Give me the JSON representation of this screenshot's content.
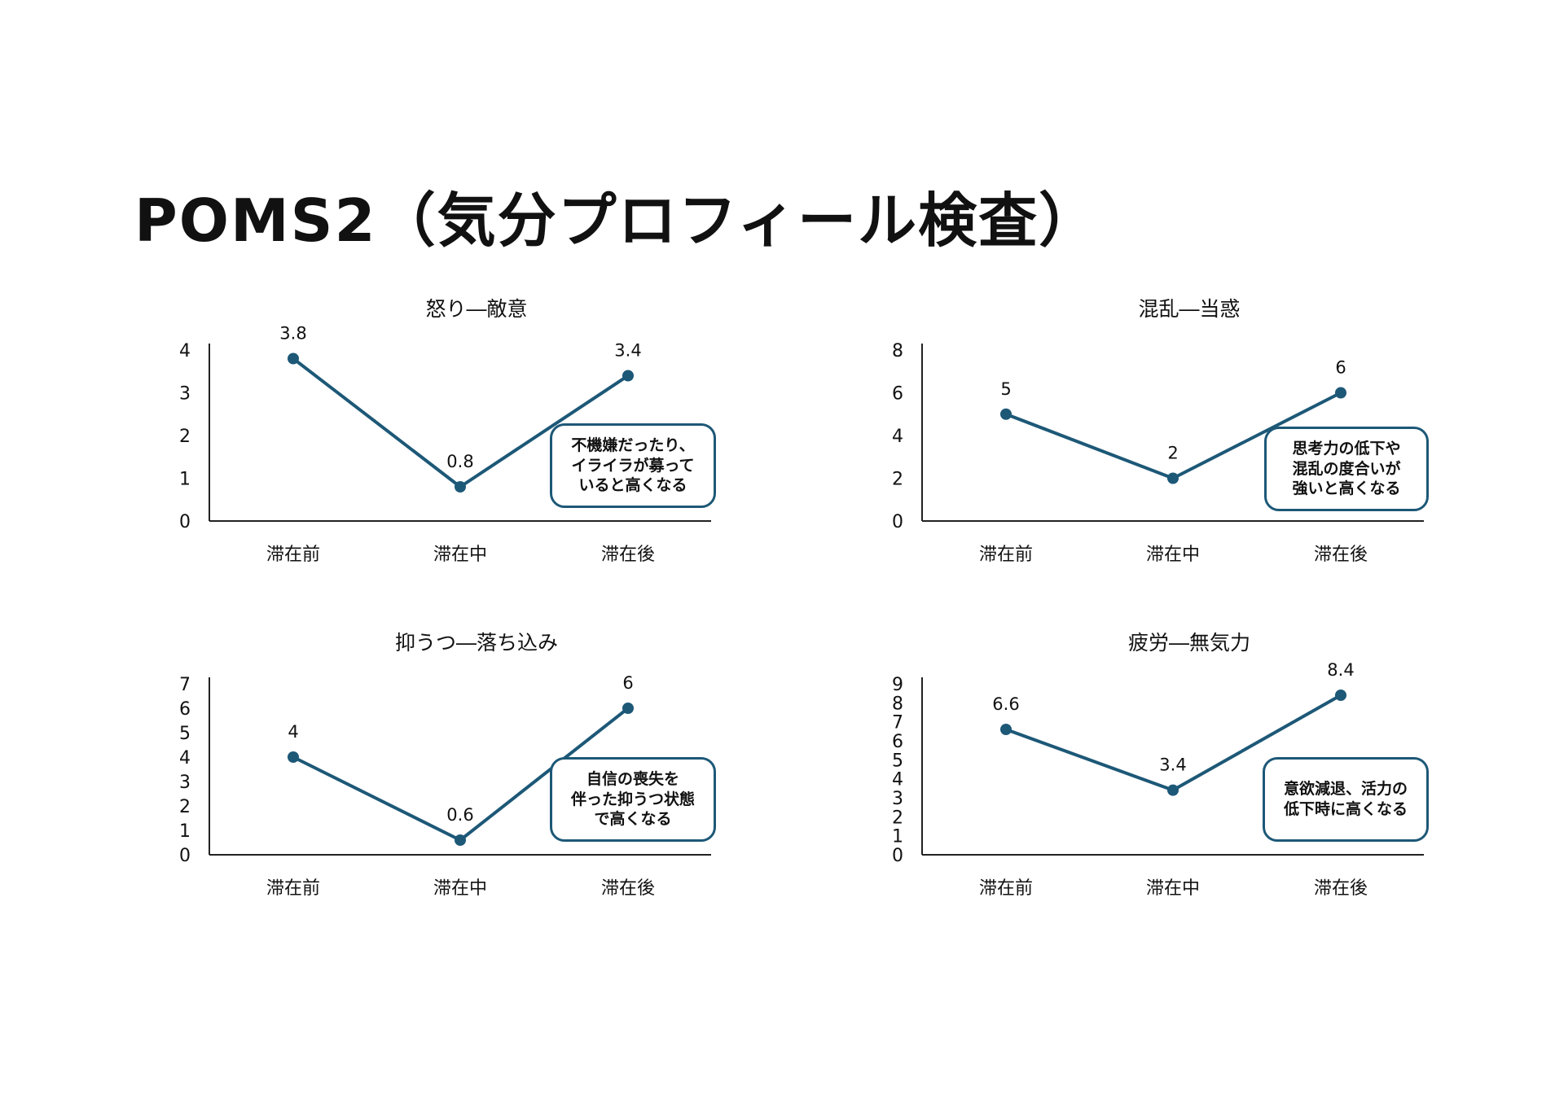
{
  "title": "POMS2（気分プロフィール検査）",
  "colors": {
    "line": "#1d5877",
    "axis": "#222222",
    "text": "#111111"
  },
  "chart_data": [
    {
      "type": "line",
      "title": "怒り―敵意",
      "categories": [
        "滞在前",
        "滞在中",
        "滞在後"
      ],
      "values": [
        3.8,
        0.8,
        3.4
      ],
      "data_labels": [
        "3.8",
        "0.8",
        "3.4"
      ],
      "ylim": [
        0,
        4
      ],
      "yticks": [
        "0",
        "1",
        "2",
        "3",
        "4"
      ],
      "grid": false,
      "note": "不機嫌だったり、\nイライラが募って\nいると高くなる"
    },
    {
      "type": "line",
      "title": "混乱―当惑",
      "categories": [
        "滞在前",
        "滞在中",
        "滞在後"
      ],
      "values": [
        5,
        2,
        6
      ],
      "data_labels": [
        "5",
        "2",
        "6"
      ],
      "ylim": [
        0,
        8
      ],
      "yticks": [
        "0",
        "2",
        "4",
        "6",
        "8"
      ],
      "grid": false,
      "note": "思考力の低下や\n混乱の度合いが\n強いと高くなる"
    },
    {
      "type": "line",
      "title": "抑うつ―落ち込み",
      "categories": [
        "滞在前",
        "滞在中",
        "滞在後"
      ],
      "values": [
        4,
        0.6,
        6
      ],
      "data_labels": [
        "4",
        "0.6",
        "6"
      ],
      "ylim": [
        0,
        7
      ],
      "yticks": [
        "0",
        "1",
        "2",
        "3",
        "4",
        "5",
        "6",
        "7"
      ],
      "grid": false,
      "note": "自信の喪失を\n伴った抑うつ状態\nで高くなる"
    },
    {
      "type": "line",
      "title": "疲労―無気力",
      "categories": [
        "滞在前",
        "滞在中",
        "滞在後"
      ],
      "values": [
        6.6,
        3.4,
        8.4
      ],
      "data_labels": [
        "6.6",
        "3.4",
        "8.4"
      ],
      "ylim": [
        0,
        9
      ],
      "yticks": [
        "0",
        "1",
        "2",
        "3",
        "4",
        "5",
        "6",
        "7",
        "8",
        "9"
      ],
      "grid": false,
      "note": "意欲減退、活力の\n低下時に高くなる"
    }
  ]
}
